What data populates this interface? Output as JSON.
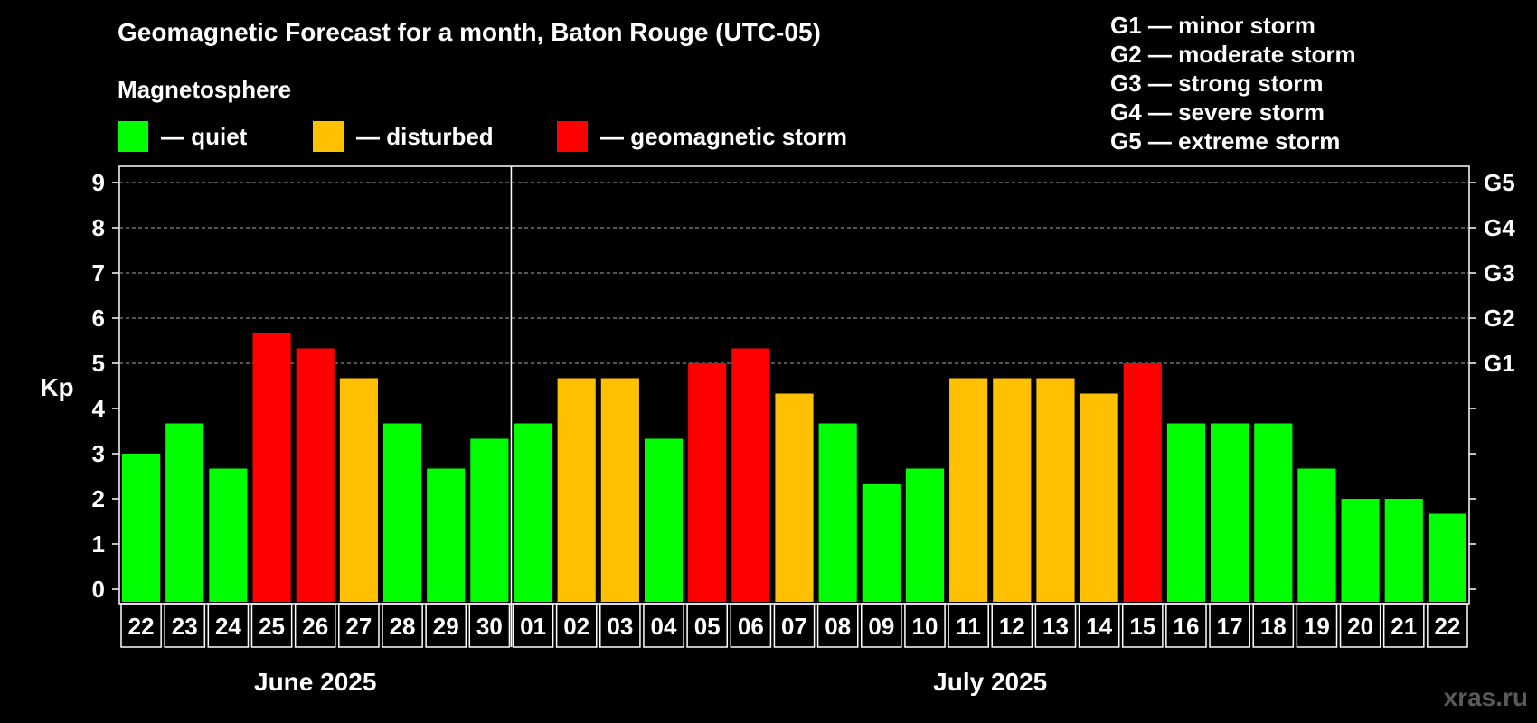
{
  "header": {
    "title": "Geomagnetic Forecast for a month, Baton Rouge (UTC-05)",
    "legend_heading": "Magnetosphere"
  },
  "legend": [
    {
      "label": "— quiet",
      "color": "#00ff00"
    },
    {
      "label": "— disturbed",
      "color": "#ffc000"
    },
    {
      "label": "— geomagnetic storm",
      "color": "#ff0000"
    }
  ],
  "storm_levels": [
    "G1 — minor storm",
    "G2 — moderate storm",
    "G3 — strong storm",
    "G4 — severe storm",
    "G5 — extreme storm"
  ],
  "watermark": "xras.ru",
  "chart_data": {
    "type": "bar",
    "title": "Geomagnetic Forecast for a month, Baton Rouge (UTC-05)",
    "ylabel": "Kp",
    "ylim": [
      0,
      9
    ],
    "yticks": [
      "0",
      "1",
      "2",
      "3",
      "4",
      "5",
      "6",
      "7",
      "8",
      "9"
    ],
    "right_axis_labels": [
      {
        "kp": 5,
        "label": "G1"
      },
      {
        "kp": 6,
        "label": "G2"
      },
      {
        "kp": 7,
        "label": "G3"
      },
      {
        "kp": 8,
        "label": "G4"
      },
      {
        "kp": 9,
        "label": "G5"
      }
    ],
    "grid_lines_at": [
      5,
      6,
      7,
      8,
      9
    ],
    "months": [
      {
        "label": "June 2025",
        "count": 9
      },
      {
        "label": "July 2025",
        "count": 22
      }
    ],
    "categories": [
      "22",
      "23",
      "24",
      "25",
      "26",
      "27",
      "28",
      "29",
      "30",
      "01",
      "02",
      "03",
      "04",
      "05",
      "06",
      "07",
      "08",
      "09",
      "10",
      "11",
      "12",
      "13",
      "14",
      "15",
      "16",
      "17",
      "18",
      "19",
      "20",
      "21",
      "22"
    ],
    "values": [
      3.0,
      3.67,
      2.67,
      5.67,
      5.33,
      4.67,
      3.67,
      2.67,
      3.33,
      3.67,
      4.67,
      4.67,
      3.33,
      5.0,
      5.33,
      4.33,
      3.67,
      2.33,
      2.67,
      4.67,
      4.67,
      4.67,
      4.33,
      5.0,
      3.67,
      3.67,
      3.67,
      2.67,
      2.0,
      2.0,
      1.67
    ],
    "status": [
      "quiet",
      "quiet",
      "quiet",
      "storm",
      "storm",
      "disturbed",
      "quiet",
      "quiet",
      "quiet",
      "quiet",
      "disturbed",
      "disturbed",
      "quiet",
      "storm",
      "storm",
      "disturbed",
      "quiet",
      "quiet",
      "quiet",
      "disturbed",
      "disturbed",
      "disturbed",
      "disturbed",
      "storm",
      "quiet",
      "quiet",
      "quiet",
      "quiet",
      "quiet",
      "quiet",
      "quiet"
    ],
    "colors": {
      "quiet": "#00ff00",
      "disturbed": "#ffc000",
      "storm": "#ff0000"
    }
  }
}
